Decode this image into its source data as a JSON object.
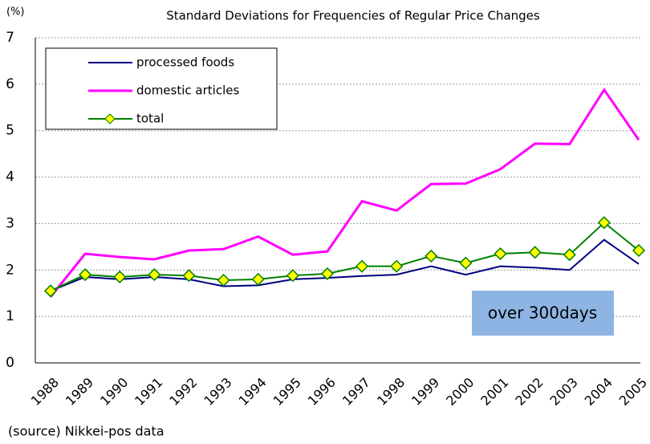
{
  "chart_data": {
    "type": "line",
    "title": "Standard Deviations for Frequencies of Regular Price Changes",
    "y_label": "(%)",
    "annotation": "over 300days",
    "source": "(source) Nikkei-pos data",
    "categories": [
      "1988",
      "1989",
      "1990",
      "1991",
      "1992",
      "1993",
      "1994",
      "1995",
      "1996",
      "1997",
      "1998",
      "1999",
      "2000",
      "2001",
      "2002",
      "2003",
      "2004",
      "2005"
    ],
    "series": [
      {
        "name": "processed foods",
        "color": "#000080",
        "marker": false,
        "values": [
          1.55,
          1.85,
          1.8,
          1.85,
          1.8,
          1.65,
          1.67,
          1.8,
          1.83,
          1.87,
          1.9,
          2.08,
          1.9,
          2.08,
          2.05,
          2.0,
          2.65,
          2.13
        ]
      },
      {
        "name": "domestic articles",
        "color": "#ff00ff",
        "marker": false,
        "values": [
          1.42,
          2.35,
          2.28,
          2.23,
          2.42,
          2.45,
          2.72,
          2.33,
          2.4,
          3.48,
          3.28,
          3.85,
          3.86,
          4.17,
          4.72,
          4.71,
          5.88,
          4.8
        ]
      },
      {
        "name": "total",
        "color": "#008000",
        "marker": true,
        "values": [
          1.55,
          1.9,
          1.85,
          1.9,
          1.88,
          1.78,
          1.8,
          1.88,
          1.92,
          2.08,
          2.08,
          2.3,
          2.15,
          2.35,
          2.38,
          2.33,
          3.02,
          2.42
        ]
      }
    ],
    "ylim": [
      0,
      7
    ],
    "yticks": [
      0,
      1,
      2,
      3,
      4,
      5,
      6,
      7
    ],
    "grid": true,
    "legend": "top-left"
  }
}
